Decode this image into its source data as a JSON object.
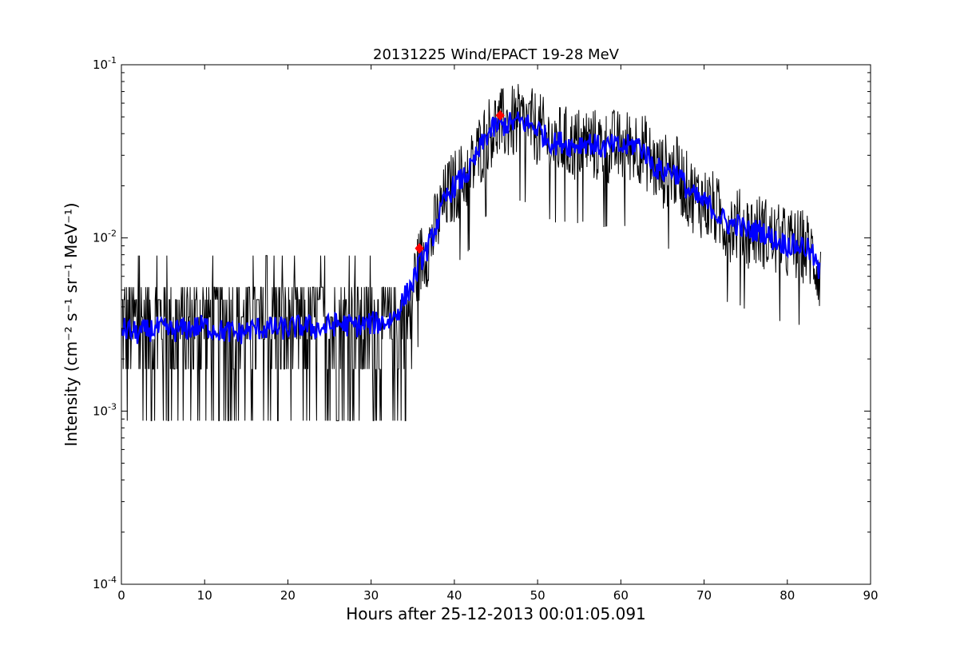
{
  "chart_data": {
    "type": "line",
    "title": "20131225 Wind/EPACT 19-28 MeV",
    "xlabel": "Hours after 25-12-2013 00:01:05.091",
    "ylabel": "Intensity (cm⁻² s⁻¹ sr⁻¹ MeV⁻¹)",
    "xlim": [
      0,
      90
    ],
    "ylim": [
      0.0001,
      0.1
    ],
    "yscale": "log",
    "grid": false,
    "x_ticks": [
      0,
      10,
      20,
      30,
      40,
      50,
      60,
      70,
      80,
      90
    ],
    "x_tick_labels": [
      "0",
      "10",
      "20",
      "30",
      "40",
      "50",
      "60",
      "70",
      "80",
      "90"
    ],
    "y_ticks": [
      0.0001,
      0.001,
      0.01,
      0.1
    ],
    "y_tick_labels": [
      {
        "base": "10",
        "exp": "-4"
      },
      {
        "base": "10",
        "exp": "-3"
      },
      {
        "base": "10",
        "exp": "-2"
      },
      {
        "base": "10",
        "exp": "-1"
      }
    ],
    "series": [
      {
        "style": "raw",
        "color": "#000000",
        "x": [
          0,
          2,
          4,
          6,
          8,
          10,
          12,
          14,
          16,
          18,
          20,
          22,
          24,
          26,
          28,
          30,
          32,
          33,
          34,
          35,
          36,
          37,
          38,
          39,
          40,
          41,
          42,
          43,
          44,
          45,
          46,
          47,
          48,
          49,
          50,
          51,
          52,
          53,
          54,
          55,
          56,
          57,
          58,
          59,
          60,
          61,
          62,
          63,
          64,
          65,
          66,
          67,
          68,
          69,
          70,
          71,
          72,
          73,
          74,
          75,
          76,
          77,
          78,
          79,
          80,
          81,
          82,
          83,
          84
        ],
        "y": [
          0.003,
          0.0028,
          0.003,
          0.0029,
          0.003,
          0.0031,
          0.0029,
          0.0028,
          0.003,
          0.003,
          0.003,
          0.0031,
          0.003,
          0.0032,
          0.0031,
          0.0032,
          0.0033,
          0.0036,
          0.0045,
          0.0055,
          0.0075,
          0.009,
          0.0125,
          0.017,
          0.02,
          0.022,
          0.025,
          0.032,
          0.04,
          0.044,
          0.045,
          0.046,
          0.047,
          0.045,
          0.043,
          0.038,
          0.035,
          0.036,
          0.034,
          0.035,
          0.036,
          0.034,
          0.033,
          0.034,
          0.033,
          0.034,
          0.035,
          0.031,
          0.026,
          0.024,
          0.025,
          0.023,
          0.019,
          0.017,
          0.016,
          0.015,
          0.013,
          0.012,
          0.012,
          0.011,
          0.011,
          0.011,
          0.01,
          0.0095,
          0.0092,
          0.009,
          0.009,
          0.008,
          0.006
        ]
      },
      {
        "style": "smoothed",
        "color": "#0000ff",
        "x": [
          0,
          2,
          4,
          6,
          8,
          10,
          12,
          14,
          16,
          18,
          20,
          22,
          24,
          26,
          28,
          30,
          32,
          33,
          34,
          35,
          36,
          37,
          38,
          39,
          40,
          41,
          42,
          43,
          44,
          45,
          46,
          47,
          48,
          49,
          50,
          51,
          52,
          53,
          54,
          55,
          56,
          57,
          58,
          59,
          60,
          61,
          62,
          63,
          64,
          65,
          66,
          67,
          68,
          69,
          70,
          71,
          72,
          73,
          74,
          75,
          76,
          77,
          78,
          79,
          80,
          81,
          82,
          83,
          84
        ],
        "y": [
          0.003,
          0.0028,
          0.003,
          0.0029,
          0.003,
          0.0031,
          0.0029,
          0.0028,
          0.003,
          0.003,
          0.003,
          0.0031,
          0.003,
          0.0032,
          0.0031,
          0.0032,
          0.0033,
          0.0036,
          0.0045,
          0.0055,
          0.0075,
          0.009,
          0.0125,
          0.017,
          0.02,
          0.022,
          0.025,
          0.032,
          0.04,
          0.044,
          0.045,
          0.046,
          0.047,
          0.045,
          0.043,
          0.038,
          0.035,
          0.036,
          0.034,
          0.035,
          0.036,
          0.034,
          0.033,
          0.034,
          0.033,
          0.034,
          0.035,
          0.031,
          0.026,
          0.024,
          0.025,
          0.023,
          0.019,
          0.017,
          0.016,
          0.015,
          0.013,
          0.012,
          0.012,
          0.011,
          0.011,
          0.011,
          0.01,
          0.0095,
          0.0092,
          0.009,
          0.009,
          0.008,
          0.006
        ]
      }
    ],
    "markers": [
      {
        "x": 35.8,
        "y": 0.0087,
        "color": "#ff0000"
      },
      {
        "x": 45.5,
        "y": 0.051,
        "color": "#ff0000"
      }
    ]
  }
}
